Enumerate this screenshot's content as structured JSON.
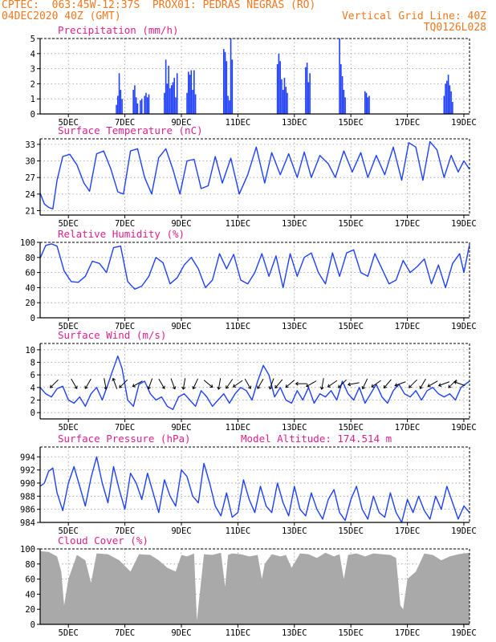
{
  "header": {
    "line1_left": "CPTEC:  063:45W-12:37S  PROX01: PEDRAS NEGRAS (RO)",
    "line2_left": "04DEC2020 40Z (GMT)",
    "line2_right": "Vertical Grid Line: 40Z",
    "line3_right": "TQ0126L028"
  },
  "colors": {
    "header": "#f07820",
    "title": "#e0208c",
    "series": "#1f3fff",
    "cloud": "#a9a9a9",
    "grid": "#999999"
  },
  "chart_data": [
    {
      "id": "precip",
      "type": "bar",
      "title": "Precipitation (mm/h)",
      "ylim": [
        0,
        5
      ],
      "yticks": [
        0,
        1,
        2,
        3,
        4,
        5
      ],
      "xlim": [
        4,
        19.2
      ],
      "xticks": [
        "5DEC",
        "7DEC",
        "9DEC",
        "11DEC",
        "13DEC",
        "15DEC",
        "17DEC",
        "19DEC"
      ],
      "x": [
        6.7,
        6.75,
        6.8,
        6.85,
        6.9,
        7.3,
        7.35,
        7.4,
        7.45,
        7.55,
        7.6,
        7.7,
        7.75,
        7.8,
        7.85,
        8.4,
        8.45,
        8.5,
        8.55,
        8.6,
        8.65,
        8.7,
        8.75,
        8.8,
        8.85,
        9.2,
        9.25,
        9.3,
        9.35,
        9.4,
        9.45,
        9.5,
        10.5,
        10.55,
        10.6,
        10.65,
        10.7,
        10.75,
        10.8,
        12.4,
        12.45,
        12.5,
        12.55,
        12.6,
        12.65,
        12.7,
        12.75,
        13.4,
        13.45,
        13.5,
        13.55,
        14.6,
        14.65,
        14.7,
        14.75,
        14.8,
        15.5,
        15.55,
        15.6,
        15.65,
        18.3,
        18.35,
        18.4,
        18.45,
        18.5,
        18.55,
        18.6
      ],
      "values": [
        0.6,
        1.2,
        2.7,
        1.6,
        1.0,
        1.6,
        1.9,
        1.1,
        0.7,
        0.9,
        1.0,
        1.2,
        1.4,
        1.1,
        1.3,
        1.4,
        3.6,
        2.0,
        3.2,
        1.7,
        1.9,
        2.1,
        2.4,
        1.1,
        2.7,
        1.4,
        2.8,
        2.6,
        2.9,
        1.6,
        2.9,
        1.3,
        4.3,
        4.1,
        3.5,
        1.2,
        0.9,
        5.0,
        3.6,
        3.3,
        4.0,
        3.5,
        2.3,
        1.6,
        2.4,
        1.8,
        1.4,
        3.1,
        3.4,
        2.1,
        2.7,
        5.0,
        3.3,
        2.5,
        1.6,
        1.1,
        1.5,
        1.4,
        1.1,
        1.2,
        1.2,
        2.0,
        2.2,
        2.6,
        1.9,
        1.5,
        0.8
      ]
    },
    {
      "id": "temp",
      "type": "line",
      "title": "Surface Temperature (nC)",
      "ylim": [
        20.2,
        34
      ],
      "yticks": [
        21,
        24,
        27,
        30,
        33
      ],
      "xlim": [
        4,
        19.2
      ],
      "xticks": [
        "5DEC",
        "7DEC",
        "9DEC",
        "11DEC",
        "13DEC",
        "15DEC",
        "17DEC",
        "19DEC"
      ],
      "x": [
        4,
        4.15,
        4.3,
        4.45,
        4.6,
        4.8,
        5.05,
        5.3,
        5.55,
        5.75,
        6.0,
        6.25,
        6.5,
        6.75,
        6.95,
        7.2,
        7.45,
        7.7,
        7.95,
        8.2,
        8.45,
        8.7,
        8.95,
        9.2,
        9.45,
        9.7,
        9.95,
        10.2,
        10.45,
        10.75,
        11.05,
        11.35,
        11.65,
        11.95,
        12.2,
        12.5,
        12.8,
        13.1,
        13.35,
        13.6,
        13.9,
        14.2,
        14.45,
        14.75,
        15.05,
        15.35,
        15.6,
        15.9,
        16.2,
        16.5,
        16.8,
        17.05,
        17.3,
        17.55,
        17.8,
        18.05,
        18.3,
        18.55,
        18.8,
        19.0,
        19.2
      ],
      "values": [
        24.2,
        22.2,
        21.6,
        21.3,
        26.5,
        30.8,
        31.2,
        29.3,
        26.0,
        24.5,
        31.3,
        31.8,
        28.6,
        24.4,
        24.0,
        31.8,
        32.2,
        27.0,
        24.0,
        30.6,
        32.2,
        28.5,
        24.0,
        30.0,
        30.3,
        25.0,
        25.5,
        30.8,
        26.0,
        30.5,
        24.0,
        27.5,
        32.5,
        26.0,
        31.5,
        27.5,
        31.3,
        27.0,
        31.6,
        27.0,
        31.0,
        29.5,
        27.0,
        31.8,
        28.0,
        31.5,
        27.0,
        31.0,
        27.5,
        32.5,
        26.5,
        33.3,
        32.5,
        26.5,
        33.5,
        32.0,
        27.0,
        31.0,
        28.0,
        30.0,
        28.5
      ]
    },
    {
      "id": "rh",
      "type": "line",
      "title": "Relative Humidity (%)",
      "ylim": [
        0,
        100
      ],
      "yticks": [
        0,
        20,
        40,
        60,
        80,
        100
      ],
      "xlim": [
        4,
        19.2
      ],
      "xticks": [
        "5DEC",
        "7DEC",
        "9DEC",
        "11DEC",
        "13DEC",
        "15DEC",
        "17DEC",
        "19DEC"
      ],
      "x": [
        4,
        4.2,
        4.4,
        4.6,
        4.85,
        5.1,
        5.35,
        5.6,
        5.85,
        6.1,
        6.35,
        6.6,
        6.85,
        7.1,
        7.35,
        7.6,
        7.85,
        8.1,
        8.35,
        8.6,
        8.85,
        9.1,
        9.35,
        9.6,
        9.85,
        10.1,
        10.35,
        10.6,
        10.85,
        11.1,
        11.35,
        11.6,
        11.85,
        12.1,
        12.35,
        12.6,
        12.85,
        13.1,
        13.35,
        13.6,
        13.85,
        14.1,
        14.35,
        14.6,
        14.85,
        15.1,
        15.35,
        15.6,
        15.85,
        16.1,
        16.35,
        16.6,
        16.85,
        17.1,
        17.35,
        17.6,
        17.85,
        18.1,
        18.35,
        18.6,
        18.85,
        19.0,
        19.2
      ],
      "values": [
        79,
        96,
        98,
        95,
        62,
        48,
        47,
        55,
        75,
        72,
        60,
        93,
        95,
        48,
        38,
        42,
        55,
        80,
        73,
        45,
        53,
        70,
        80,
        65,
        40,
        50,
        85,
        65,
        84,
        50,
        45,
        60,
        85,
        55,
        82,
        40,
        85,
        55,
        80,
        86,
        60,
        45,
        86,
        55,
        86,
        90,
        60,
        55,
        85,
        65,
        45,
        50,
        76,
        60,
        68,
        78,
        45,
        70,
        40,
        72,
        85,
        60,
        97
      ]
    },
    {
      "id": "wind",
      "type": "line",
      "title": "Surface Wind (m/s)",
      "ylim": [
        -1,
        11
      ],
      "yticks": [
        0,
        2,
        4,
        6,
        8,
        10
      ],
      "xlim": [
        4,
        19.2
      ],
      "xticks": [
        "5DEC",
        "7DEC",
        "9DEC",
        "11DEC",
        "13DEC",
        "15DEC",
        "17DEC",
        "19DEC"
      ],
      "x": [
        4,
        4.2,
        4.4,
        4.6,
        4.8,
        5.0,
        5.2,
        5.4,
        5.6,
        5.8,
        6.0,
        6.2,
        6.4,
        6.55,
        6.75,
        6.9,
        7.1,
        7.3,
        7.5,
        7.7,
        7.9,
        8.1,
        8.3,
        8.5,
        8.7,
        8.9,
        9.1,
        9.3,
        9.5,
        9.7,
        9.9,
        10.1,
        10.3,
        10.5,
        10.7,
        10.9,
        11.1,
        11.3,
        11.5,
        11.7,
        11.9,
        12.1,
        12.3,
        12.5,
        12.7,
        12.9,
        13.1,
        13.3,
        13.5,
        13.7,
        13.9,
        14.1,
        14.3,
        14.5,
        14.7,
        14.9,
        15.1,
        15.3,
        15.5,
        15.7,
        15.9,
        16.1,
        16.3,
        16.5,
        16.7,
        16.9,
        17.1,
        17.3,
        17.5,
        17.7,
        17.9,
        18.1,
        18.3,
        18.5,
        18.7,
        18.9,
        19.2
      ],
      "values": [
        4.0,
        3.0,
        2.5,
        3.8,
        4.2,
        2.0,
        1.5,
        2.5,
        1.0,
        3.0,
        4.0,
        2.0,
        4.5,
        6.5,
        9.0,
        7.0,
        2.0,
        1.0,
        4.5,
        5.0,
        3.0,
        2.0,
        2.5,
        1.0,
        0.5,
        2.5,
        3.0,
        2.0,
        1.0,
        3.5,
        2.5,
        1.0,
        2.0,
        3.0,
        1.5,
        3.0,
        4.0,
        3.5,
        2.0,
        5.0,
        7.5,
        6.0,
        2.5,
        4.0,
        2.0,
        1.5,
        3.5,
        2.0,
        4.0,
        1.5,
        3.0,
        2.5,
        3.5,
        2.0,
        5.0,
        3.0,
        2.0,
        4.0,
        1.5,
        3.0,
        4.5,
        2.5,
        1.5,
        3.5,
        4.5,
        3.0,
        2.5,
        3.5,
        2.0,
        3.5,
        4.0,
        3.0,
        2.5,
        3.0,
        2.0,
        4.0,
        5.0
      ],
      "arrows_x": [
        4.5,
        5.2,
        5.7,
        6.3,
        6.65,
        6.95,
        7.45,
        7.9,
        8.3,
        8.7,
        9.1,
        9.5,
        9.95,
        10.35,
        10.7,
        11.0,
        11.35,
        11.8,
        12.2,
        12.45,
        12.85,
        13.25,
        13.6,
        14.0,
        14.35,
        14.7,
        15.1,
        15.5,
        15.9,
        16.3,
        16.75,
        17.2,
        17.55,
        17.9,
        18.3,
        18.6,
        18.85
      ],
      "arrows_dir": [
        225,
        300,
        240,
        280,
        110,
        225,
        210,
        250,
        300,
        290,
        260,
        245,
        320,
        260,
        235,
        215,
        300,
        240,
        250,
        230,
        220,
        180,
        210,
        260,
        215,
        225,
        190,
        245,
        215,
        230,
        200,
        225,
        240,
        210,
        200,
        225,
        160
      ]
    },
    {
      "id": "press",
      "type": "line",
      "title": "Surface Pressure (hPa)",
      "annotation": "Model Altitude: 174.514 m",
      "ylim": [
        984,
        995.5
      ],
      "yticks": [
        984,
        986,
        988,
        990,
        992,
        994
      ],
      "xlim": [
        4,
        19.2
      ],
      "xticks": [
        "5DEC",
        "7DEC",
        "9DEC",
        "11DEC",
        "13DEC",
        "15DEC",
        "17DEC",
        "19DEC"
      ],
      "x": [
        4,
        4.15,
        4.3,
        4.45,
        4.6,
        4.8,
        5.0,
        5.2,
        5.4,
        5.6,
        5.8,
        6.0,
        6.2,
        6.4,
        6.6,
        6.8,
        7.0,
        7.2,
        7.4,
        7.6,
        7.8,
        8.0,
        8.2,
        8.4,
        8.6,
        8.8,
        9.0,
        9.2,
        9.4,
        9.6,
        9.8,
        10.0,
        10.2,
        10.4,
        10.6,
        10.8,
        11.0,
        11.2,
        11.4,
        11.6,
        11.8,
        12.0,
        12.2,
        12.4,
        12.6,
        12.8,
        13.0,
        13.2,
        13.4,
        13.6,
        13.8,
        14.0,
        14.2,
        14.4,
        14.6,
        14.8,
        15.0,
        15.2,
        15.4,
        15.6,
        15.8,
        16.0,
        16.2,
        16.4,
        16.6,
        16.8,
        17.0,
        17.2,
        17.4,
        17.6,
        17.8,
        18.0,
        18.2,
        18.4,
        18.6,
        18.8,
        19.0,
        19.2
      ],
      "values": [
        989.5,
        990.0,
        991.8,
        992.3,
        988.5,
        985.8,
        990.0,
        992.5,
        989.5,
        986.5,
        990.8,
        994.0,
        990.0,
        987.0,
        992.5,
        989.0,
        986.0,
        991.5,
        990.0,
        987.5,
        991.5,
        988.5,
        985.5,
        990.5,
        988.0,
        986.5,
        992.0,
        991.0,
        988.0,
        987.0,
        993.0,
        990.0,
        986.5,
        985.0,
        988.5,
        984.8,
        985.5,
        990.5,
        987.5,
        985.5,
        989.5,
        986.5,
        985.5,
        990.0,
        987.0,
        985.0,
        989.5,
        986.0,
        985.0,
        988.5,
        986.0,
        984.5,
        987.5,
        989.0,
        985.5,
        984.3,
        987.5,
        989.5,
        986.0,
        984.5,
        988.0,
        985.5,
        984.8,
        988.5,
        985.5,
        984.0,
        987.5,
        985.5,
        988.0,
        985.8,
        984.5,
        988.0,
        986.0,
        989.5,
        987.0,
        984.5,
        986.5,
        985.5
      ]
    },
    {
      "id": "cloud",
      "type": "area",
      "title": "Cloud Cover (%)",
      "ylim": [
        0,
        100
      ],
      "yticks": [
        0,
        20,
        40,
        60,
        80,
        100
      ],
      "xlim": [
        4,
        19.2
      ],
      "xticks": [
        "5DEC",
        "7DEC",
        "9DEC",
        "11DEC",
        "13DEC",
        "15DEC",
        "17DEC",
        "19DEC"
      ],
      "x": [
        4,
        4.3,
        4.6,
        4.75,
        4.85,
        5.0,
        5.3,
        5.6,
        5.8,
        6.0,
        6.4,
        6.8,
        7.2,
        7.5,
        7.9,
        8.2,
        8.5,
        8.8,
        9.0,
        9.2,
        9.45,
        9.55,
        9.8,
        10.1,
        10.4,
        10.55,
        10.65,
        10.8,
        11.1,
        11.4,
        11.7,
        11.85,
        11.95,
        12.2,
        12.5,
        12.7,
        12.9,
        13.2,
        13.5,
        13.8,
        14.1,
        14.4,
        14.6,
        14.75,
        14.9,
        15.2,
        15.5,
        15.8,
        16.1,
        16.4,
        16.6,
        16.75,
        16.85,
        17.0,
        17.3,
        17.6,
        17.9,
        18.2,
        18.5,
        18.8,
        19.2
      ],
      "values": [
        97,
        96,
        90,
        70,
        25,
        60,
        92,
        85,
        55,
        94,
        93,
        85,
        70,
        93,
        92,
        85,
        75,
        70,
        92,
        90,
        94,
        5,
        93,
        92,
        95,
        50,
        92,
        94,
        93,
        90,
        92,
        60,
        80,
        93,
        90,
        92,
        75,
        94,
        93,
        88,
        95,
        90,
        93,
        60,
        92,
        94,
        90,
        94,
        93,
        92,
        88,
        25,
        20,
        60,
        70,
        94,
        92,
        85,
        90,
        93,
        95
      ]
    }
  ]
}
